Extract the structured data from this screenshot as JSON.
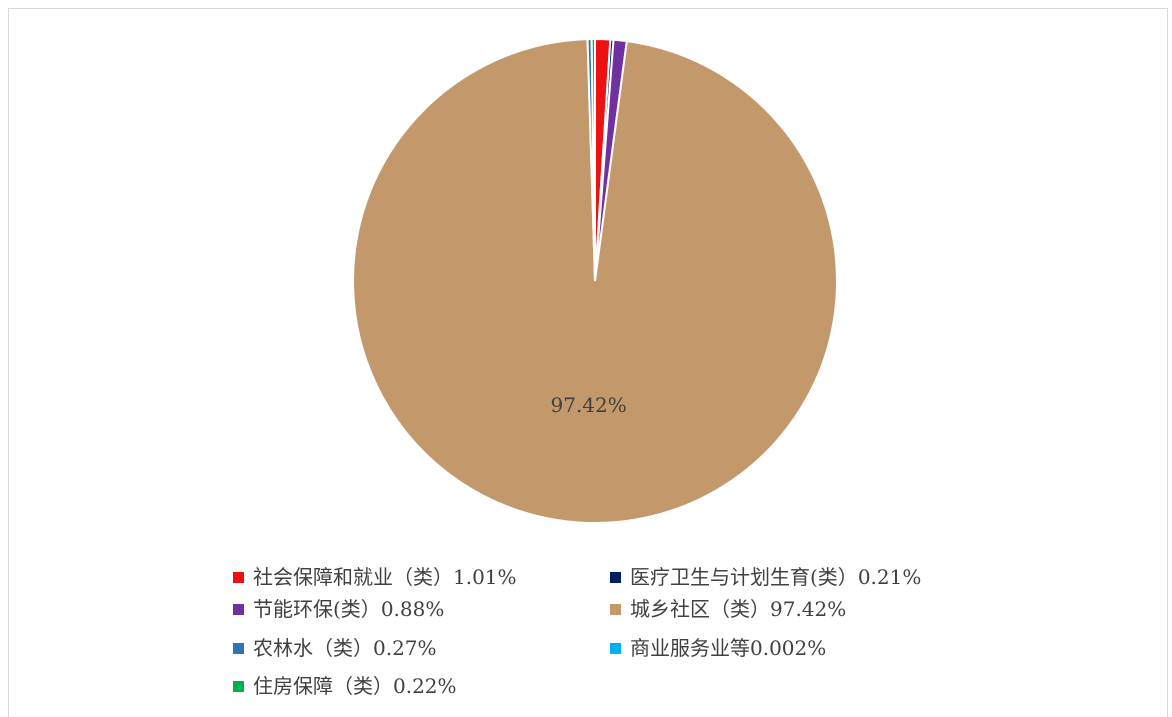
{
  "chart_data": {
    "type": "pie",
    "categories": [
      "社会保障和就业（类）",
      "医疗卫生与计划生育(类）",
      "节能环保(类）",
      "城乡社区（类）",
      "农林水（类）",
      "商业服务业等",
      "住房保障（类）"
    ],
    "values": [
      1.01,
      0.21,
      0.88,
      97.42,
      0.27,
      0.002,
      0.22
    ],
    "value_labels": [
      "1.01%",
      "0.21%",
      "0.88%",
      "97.42%",
      "0.27%",
      "0.002%",
      "0.22%"
    ],
    "colors": [
      "#ee1111",
      "#002060",
      "#7030a0",
      "#c3986b",
      "#2e75b6",
      "#00b0f0",
      "#00b050"
    ],
    "legend": "bottom"
  }
}
